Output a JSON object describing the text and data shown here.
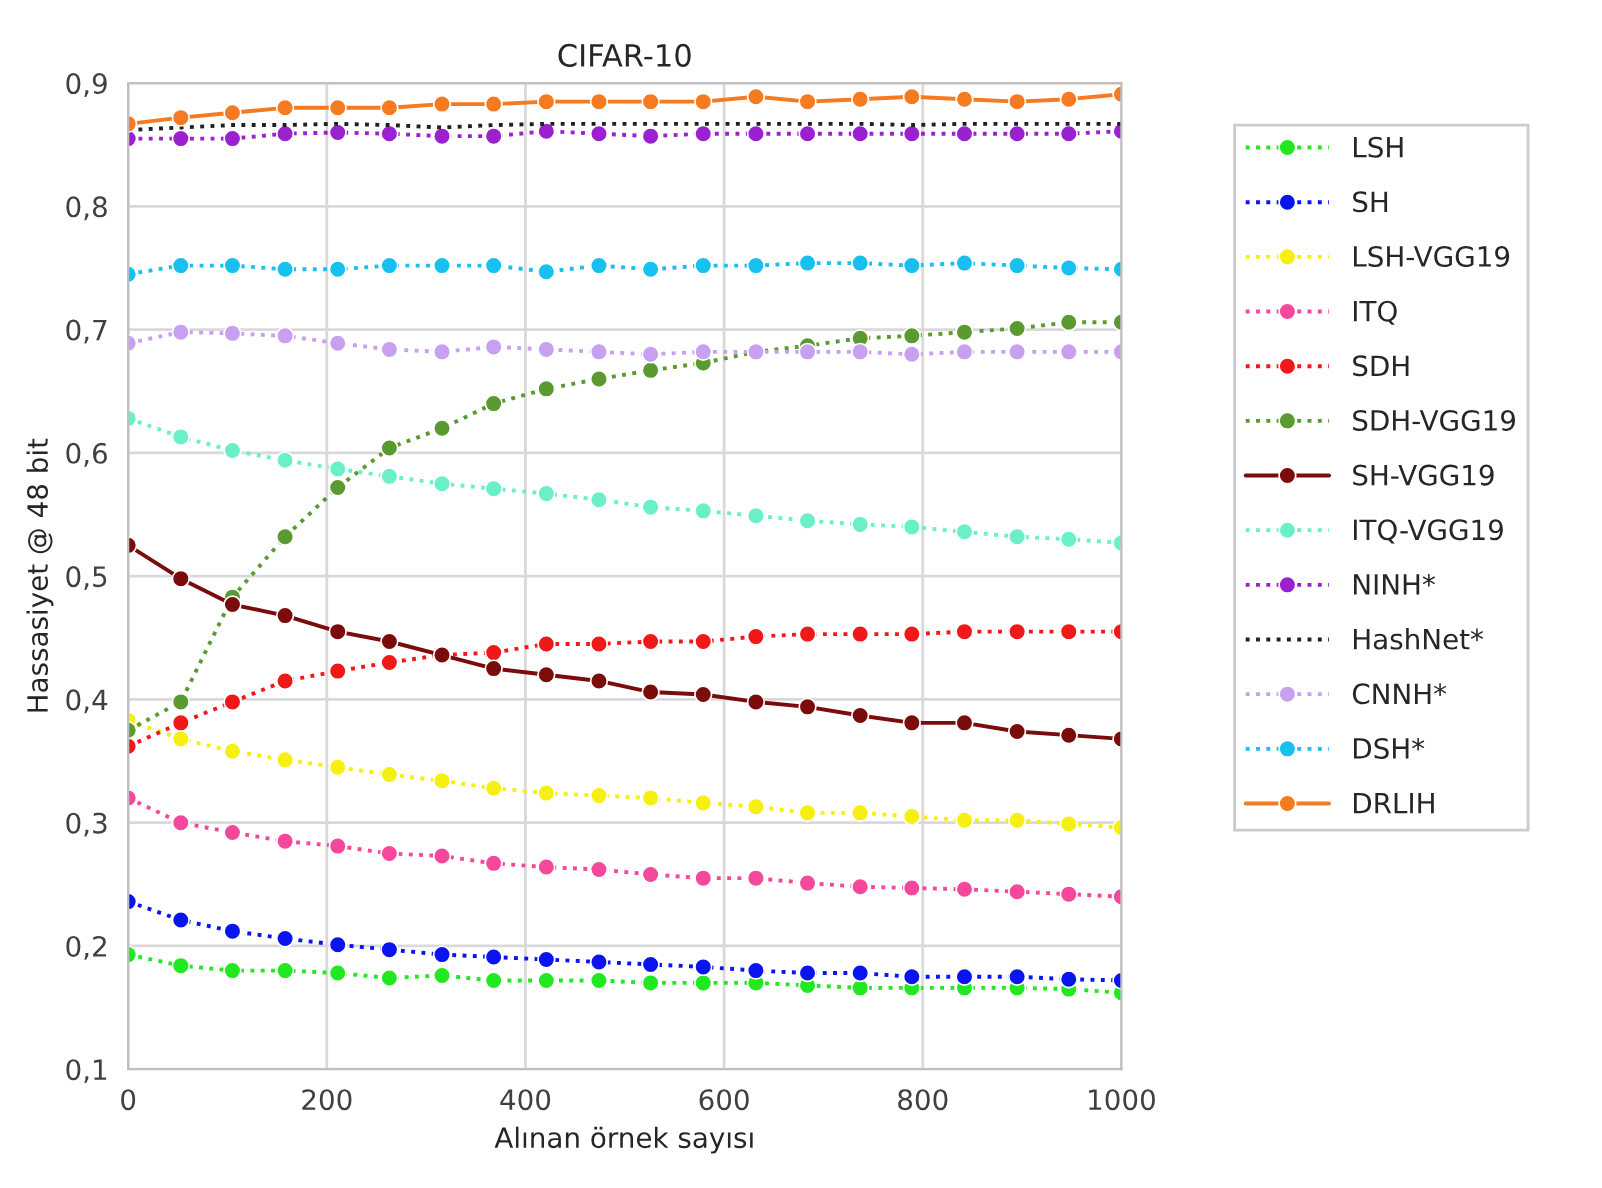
{
  "chart_data": {
    "type": "line",
    "title": "CIFAR-10",
    "xlabel": "Alınan örnek sayısı",
    "ylabel": "Hassasiyet @ 48 bit",
    "x": [
      0,
      53,
      105,
      158,
      211,
      263,
      316,
      368,
      421,
      474,
      526,
      579,
      632,
      684,
      737,
      789,
      842,
      895,
      947,
      1000
    ],
    "xlim": [
      0,
      1000
    ],
    "xticks": [
      0,
      200,
      400,
      600,
      800,
      1000
    ],
    "ylim": [
      0.1,
      0.9
    ],
    "yticks": [
      {
        "value": 0.1,
        "label": "0,1"
      },
      {
        "value": 0.2,
        "label": "0,2"
      },
      {
        "value": 0.3,
        "label": "0,3"
      },
      {
        "value": 0.4,
        "label": "0,4"
      },
      {
        "value": 0.5,
        "label": "0,5"
      },
      {
        "value": 0.6,
        "label": "0,6"
      },
      {
        "value": 0.7,
        "label": "0,7"
      },
      {
        "value": 0.8,
        "label": "0,8"
      },
      {
        "value": 0.9,
        "label": "0,9"
      }
    ],
    "grid": true,
    "legend": "right",
    "marker": "circle",
    "line_style": "dotted",
    "series": [
      {
        "name": "LSH",
        "color": "#22e822",
        "values": [
          0.193,
          0.184,
          0.18,
          0.18,
          0.178,
          0.174,
          0.176,
          0.172,
          0.172,
          0.172,
          0.17,
          0.17,
          0.17,
          0.168,
          0.166,
          0.166,
          0.166,
          0.166,
          0.165,
          0.162
        ]
      },
      {
        "name": "SH",
        "color": "#0a14f0",
        "values": [
          0.236,
          0.221,
          0.212,
          0.206,
          0.201,
          0.197,
          0.193,
          0.191,
          0.189,
          0.187,
          0.185,
          0.183,
          0.18,
          0.178,
          0.178,
          0.175,
          0.175,
          0.175,
          0.173,
          0.172
        ]
      },
      {
        "name": "LSH-VGG19",
        "color": "#f5f010",
        "values": [
          0.383,
          0.368,
          0.358,
          0.351,
          0.345,
          0.339,
          0.334,
          0.328,
          0.324,
          0.322,
          0.32,
          0.316,
          0.313,
          0.308,
          0.308,
          0.305,
          0.302,
          0.302,
          0.299,
          0.296
        ]
      },
      {
        "name": "ITQ",
        "color": "#f5489a",
        "values": [
          0.32,
          0.3,
          0.292,
          0.285,
          0.281,
          0.275,
          0.273,
          0.267,
          0.264,
          0.262,
          0.258,
          0.255,
          0.255,
          0.251,
          0.248,
          0.247,
          0.246,
          0.244,
          0.242,
          0.24
        ]
      },
      {
        "name": "SDH",
        "color": "#f01818",
        "values": [
          0.362,
          0.381,
          0.398,
          0.415,
          0.423,
          0.43,
          0.436,
          0.438,
          0.445,
          0.445,
          0.447,
          0.447,
          0.451,
          0.453,
          0.453,
          0.453,
          0.455,
          0.455,
          0.455,
          0.455
        ]
      },
      {
        "name": "SDH-VGG19",
        "color": "#5a9a30",
        "values": [
          0.375,
          0.398,
          0.483,
          0.532,
          0.572,
          0.604,
          0.62,
          0.64,
          0.652,
          0.66,
          0.667,
          0.673,
          0.682,
          0.687,
          0.693,
          0.695,
          0.698,
          0.701,
          0.706,
          0.706
        ]
      },
      {
        "name": "SH-VGG19",
        "color": "#7a0c0c",
        "line_style": "solid",
        "values": [
          0.525,
          0.498,
          0.477,
          0.468,
          0.455,
          0.447,
          0.436,
          0.425,
          0.42,
          0.415,
          0.406,
          0.404,
          0.398,
          0.394,
          0.387,
          0.381,
          0.381,
          0.374,
          0.371,
          0.368
        ]
      },
      {
        "name": "ITQ-VGG19",
        "color": "#6af0c8",
        "values": [
          0.628,
          0.613,
          0.602,
          0.594,
          0.587,
          0.581,
          0.575,
          0.571,
          0.567,
          0.562,
          0.556,
          0.553,
          0.549,
          0.545,
          0.542,
          0.54,
          0.536,
          0.532,
          0.53,
          0.527
        ]
      },
      {
        "name": "NINH*",
        "color": "#9a20d0",
        "values": [
          0.855,
          0.855,
          0.855,
          0.859,
          0.86,
          0.859,
          0.857,
          0.857,
          0.861,
          0.859,
          0.857,
          0.859,
          0.859,
          0.859,
          0.859,
          0.859,
          0.859,
          0.859,
          0.859,
          0.861
        ]
      },
      {
        "name": "HashNet*",
        "color": "#202020",
        "marker": "none",
        "values": [
          0.862,
          0.864,
          0.866,
          0.866,
          0.867,
          0.866,
          0.864,
          0.866,
          0.867,
          0.867,
          0.867,
          0.867,
          0.867,
          0.867,
          0.867,
          0.866,
          0.867,
          0.867,
          0.867,
          0.867
        ]
      },
      {
        "name": "CNNH*",
        "color": "#c8a0f0",
        "values": [
          0.689,
          0.698,
          0.697,
          0.695,
          0.689,
          0.684,
          0.682,
          0.686,
          0.684,
          0.682,
          0.68,
          0.682,
          0.682,
          0.682,
          0.682,
          0.68,
          0.682,
          0.682,
          0.682,
          0.682
        ]
      },
      {
        "name": "DSH*",
        "color": "#18c0f0",
        "values": [
          0.745,
          0.752,
          0.752,
          0.749,
          0.749,
          0.752,
          0.752,
          0.752,
          0.747,
          0.752,
          0.749,
          0.752,
          0.752,
          0.754,
          0.754,
          0.752,
          0.754,
          0.752,
          0.75,
          0.749
        ]
      },
      {
        "name": "DRLIH",
        "color": "#f57a20",
        "line_style": "solid",
        "values": [
          0.867,
          0.872,
          0.876,
          0.88,
          0.88,
          0.88,
          0.883,
          0.883,
          0.885,
          0.885,
          0.885,
          0.885,
          0.889,
          0.885,
          0.887,
          0.889,
          0.887,
          0.885,
          0.887,
          0.891
        ]
      }
    ]
  }
}
